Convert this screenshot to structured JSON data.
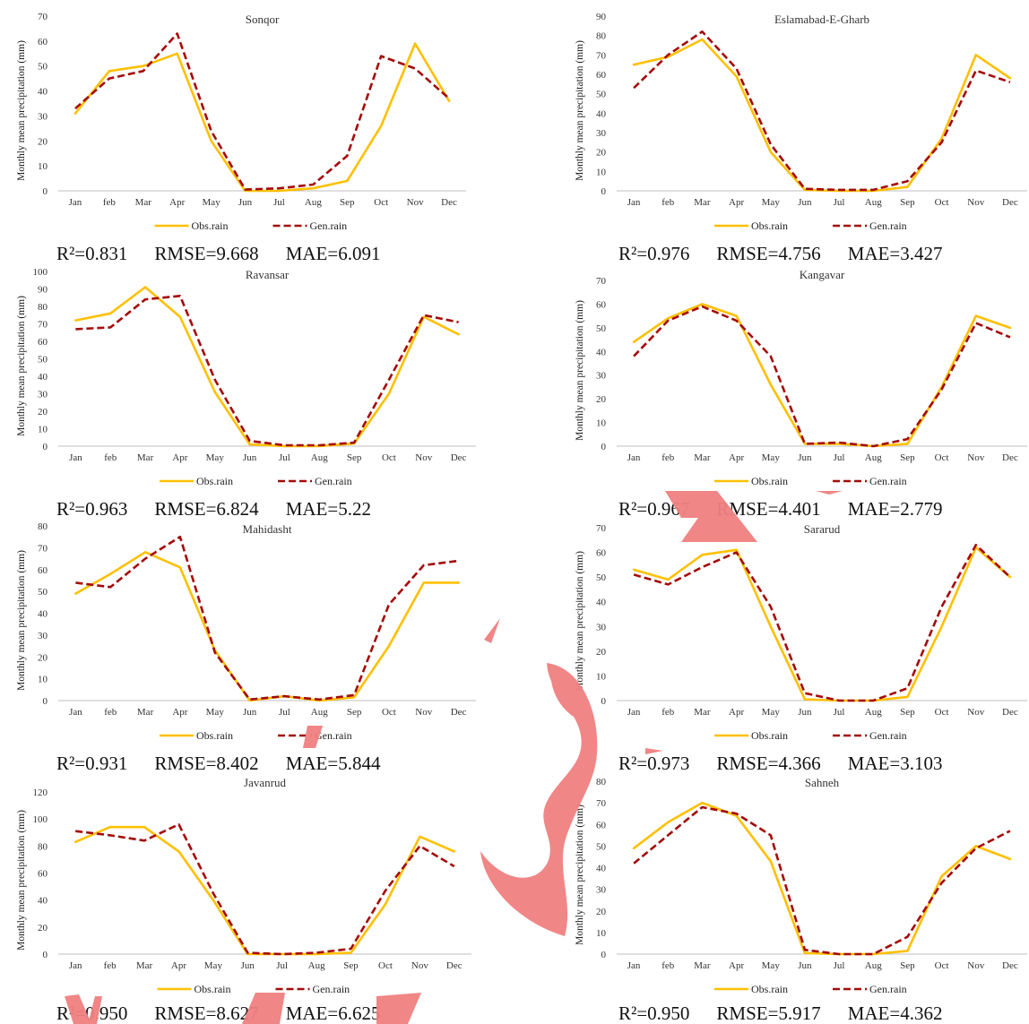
{
  "colors": {
    "obs": "#FFC000",
    "gen": "#A50A0A",
    "axis": "#BFBFBF",
    "watermark": "#F08080"
  },
  "chart_data": [
    {
      "type": "line",
      "title": "Sonqor",
      "categories": [
        "Jan",
        "feb",
        "Mar",
        "Apr",
        "May",
        "Jun",
        "Jul",
        "Aug",
        "Sep",
        "Oct",
        "Nov",
        "Dec"
      ],
      "ylabel": "Monthly mean precipitation (mm)",
      "ylim": [
        0,
        70
      ],
      "yticks": [
        0,
        10,
        20,
        30,
        40,
        50,
        60,
        70
      ],
      "legend": "bottom",
      "series": [
        {
          "name": "Obs.rain",
          "style": "solid",
          "values": [
            31,
            48,
            50,
            55,
            20,
            0,
            0,
            1,
            4,
            26,
            59,
            36
          ]
        },
        {
          "name": "Gen.rain",
          "style": "dashed",
          "values": [
            33,
            45,
            48,
            63,
            24,
            0.5,
            1,
            2.5,
            14,
            54,
            49,
            37
          ]
        }
      ],
      "stats": {
        "r2": "R²=0.831",
        "rmse": "RMSE=9.668",
        "mae": "MAE=6.091"
      }
    },
    {
      "type": "line",
      "title": "Eslamabad-E-Gharb",
      "categories": [
        "Jan",
        "feb",
        "Mar",
        "Apr",
        "May",
        "Jun",
        "Jul",
        "Aug",
        "Sep",
        "Oct",
        "Nov",
        "Dec"
      ],
      "ylabel": "Monthly mean precipitation (mm)",
      "ylim": [
        0,
        90
      ],
      "yticks": [
        0,
        10,
        20,
        30,
        40,
        50,
        60,
        70,
        80,
        90
      ],
      "legend": "bottom",
      "series": [
        {
          "name": "Obs.rain",
          "style": "solid",
          "values": [
            65,
            69,
            78,
            59,
            20,
            0.5,
            0,
            0,
            2,
            27,
            70,
            58
          ]
        },
        {
          "name": "Gen.rain",
          "style": "dashed",
          "values": [
            53,
            70,
            82,
            63,
            24,
            1,
            0.5,
            0.5,
            5,
            25,
            62,
            56
          ]
        }
      ],
      "stats": {
        "r2": "R²=0.976",
        "rmse": "RMSE=4.756",
        "mae": "MAE=3.427"
      }
    },
    {
      "type": "line",
      "title": "Ravansar",
      "categories": [
        "Jan",
        "feb",
        "Mar",
        "Apr",
        "May",
        "Jun",
        "Jul",
        "Aug",
        "Sep",
        "Oct",
        "Nov",
        "Dec"
      ],
      "ylabel": "Monthly mean precipitation (mm)",
      "ylim": [
        0,
        100
      ],
      "yticks": [
        0,
        10,
        20,
        30,
        40,
        50,
        60,
        70,
        80,
        90,
        100
      ],
      "legend": "bottom",
      "series": [
        {
          "name": "Obs.rain",
          "style": "solid",
          "values": [
            72,
            76,
            91,
            74,
            31,
            1,
            0,
            0,
            1.5,
            30,
            74,
            64
          ]
        },
        {
          "name": "Gen.rain",
          "style": "dashed",
          "values": [
            67,
            68,
            84,
            86,
            38,
            3,
            0.5,
            0.5,
            2,
            38,
            75,
            71
          ]
        }
      ],
      "stats": {
        "r2": "R²=0.963",
        "rmse": "RMSE=6.824",
        "mae": "MAE=5.22"
      }
    },
    {
      "type": "line",
      "title": "Kangavar",
      "categories": [
        "Jan",
        "feb",
        "Mar",
        "Apr",
        "May",
        "Jun",
        "Jul",
        "Aug",
        "Sep",
        "Oct",
        "Nov",
        "Dec"
      ],
      "ylabel": "Monthly mean precipitation (mm)",
      "ylim": [
        0,
        70
      ],
      "yticks": [
        0,
        10,
        20,
        30,
        40,
        50,
        60,
        70
      ],
      "legend": "bottom",
      "series": [
        {
          "name": "Obs.rain",
          "style": "solid",
          "values": [
            44,
            54,
            60,
            55,
            26,
            1,
            1,
            0,
            1,
            25,
            55,
            50
          ]
        },
        {
          "name": "Gen.rain",
          "style": "dashed",
          "values": [
            38,
            53,
            59,
            53,
            38,
            1,
            1.5,
            0,
            3,
            24,
            52,
            46
          ]
        }
      ],
      "stats": {
        "r2": "R²=0.967",
        "rmse": "RMSE=4.401",
        "mae": "MAE=2.779"
      }
    },
    {
      "type": "line",
      "title": "Mahidasht",
      "categories": [
        "Jan",
        "feb",
        "Mar",
        "Apr",
        "May",
        "Jun",
        "Jul",
        "Aug",
        "Sep",
        "Oct",
        "Nov",
        "Dec"
      ],
      "ylabel": "Monthly mean precipitation (mm)",
      "ylim": [
        0,
        80
      ],
      "yticks": [
        0,
        10,
        20,
        30,
        40,
        50,
        60,
        70,
        80
      ],
      "legend": "bottom",
      "series": [
        {
          "name": "Obs.rain",
          "style": "solid",
          "values": [
            49,
            58,
            68,
            61,
            23,
            0,
            2,
            0,
            1.5,
            25,
            54,
            54
          ]
        },
        {
          "name": "Gen.rain",
          "style": "dashed",
          "values": [
            54,
            52,
            65,
            75,
            22,
            0.5,
            2,
            0.5,
            2.5,
            44,
            62,
            64
          ]
        }
      ],
      "stats": {
        "r2": "R²=0.931",
        "rmse": "RMSE=8.402",
        "mae": "MAE=5.844"
      }
    },
    {
      "type": "line",
      "title": "Sararud",
      "categories": [
        "Jan",
        "feb",
        "Mar",
        "Apr",
        "May",
        "Jun",
        "Jul",
        "Aug",
        "Sep",
        "Oct",
        "Nov",
        "Dec"
      ],
      "ylabel": "Monthly mean precipitation (mm)",
      "ylim": [
        0,
        70
      ],
      "yticks": [
        0,
        10,
        20,
        30,
        40,
        50,
        60,
        70
      ],
      "legend": "bottom",
      "series": [
        {
          "name": "Obs.rain",
          "style": "solid",
          "values": [
            53,
            49,
            59,
            61,
            30,
            0.5,
            0,
            0,
            1.5,
            30,
            62,
            50
          ]
        },
        {
          "name": "Gen.rain",
          "style": "dashed",
          "values": [
            51,
            47,
            54,
            60,
            38,
            3,
            0,
            0,
            5,
            38,
            63,
            50
          ]
        }
      ],
      "stats": {
        "r2": "R²=0.973",
        "rmse": "RMSE=4.366",
        "mae": "MAE=3.103"
      }
    },
    {
      "type": "line",
      "title": "Javanrud",
      "categories": [
        "Jan",
        "feb",
        "Mar",
        "Apr",
        "May",
        "Jun",
        "Jul",
        "Aug",
        "Sep",
        "Oct",
        "Nov",
        "Dec"
      ],
      "ylabel": "Monthly mean precipitation (mm)",
      "ylim": [
        0,
        120
      ],
      "yticks": [
        0,
        20,
        40,
        60,
        80,
        100,
        120
      ],
      "legend": "bottom",
      "series": [
        {
          "name": "Obs.rain",
          "style": "solid",
          "values": [
            83,
            94,
            94,
            76,
            40,
            0,
            0,
            0,
            1,
            37,
            87,
            76
          ]
        },
        {
          "name": "Gen.rain",
          "style": "dashed",
          "values": [
            91,
            88,
            84,
            96,
            45,
            1,
            0,
            1,
            4,
            47,
            80,
            65
          ]
        }
      ],
      "stats": {
        "r2": "R²=0.950",
        "rmse": "RMSE=8.627",
        "mae": "MAE=6.625"
      }
    },
    {
      "type": "line",
      "title": "Sahneh",
      "categories": [
        "Jan",
        "feb",
        "Mar",
        "Apr",
        "May",
        "Jun",
        "Jul",
        "Aug",
        "Sep",
        "Oct",
        "Nov",
        "Dec"
      ],
      "ylabel": "Monthly mean precipitation (mm)",
      "ylim": [
        0,
        80
      ],
      "yticks": [
        0,
        10,
        20,
        30,
        40,
        50,
        60,
        70,
        80
      ],
      "legend": "bottom",
      "series": [
        {
          "name": "Obs.rain",
          "style": "solid",
          "values": [
            49,
            61,
            70,
            64,
            43,
            0.5,
            0,
            0,
            1.5,
            36,
            50,
            44
          ]
        },
        {
          "name": "Gen.rain",
          "style": "dashed",
          "values": [
            42,
            55,
            68,
            65,
            55,
            2,
            0,
            0,
            8,
            33,
            49,
            57
          ]
        }
      ],
      "stats": {
        "r2": "R²=0.950",
        "rmse": "RMSE=5.917",
        "mae": "MAE=4.362"
      }
    }
  ]
}
